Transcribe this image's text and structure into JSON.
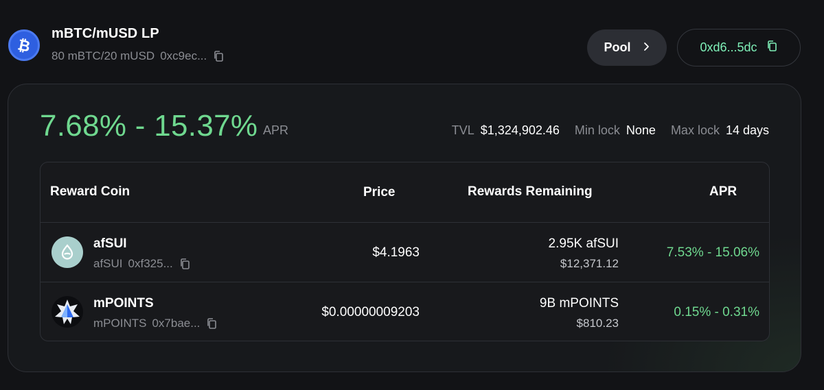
{
  "header": {
    "title": "mBTC/mUSD LP",
    "composition": "80 mBTC/20 mUSD",
    "address": "0xc9ec...",
    "logo_icon": "bitcoin-icon",
    "pool_button_label": "Pool",
    "wallet_label": "0xd6...5dc"
  },
  "summary": {
    "apr_range": "7.68% - 15.37%",
    "apr_label": "APR",
    "tvl_label": "TVL",
    "tvl_value": "$1,324,902.46",
    "min_lock_label": "Min lock",
    "min_lock_value": "None",
    "max_lock_label": "Max lock",
    "max_lock_value": "14 days"
  },
  "table": {
    "columns": [
      "Reward Coin",
      "Price",
      "Rewards Remaining",
      "APR"
    ],
    "rows": [
      {
        "icon": "afsui-drop-icon",
        "name": "afSUI",
        "symbol": "afSUI",
        "address": "0xf325...",
        "price": "$4.1963",
        "remaining_amount": "2.95K afSUI",
        "remaining_usd": "$12,371.12",
        "apr": "7.53% - 15.06%"
      },
      {
        "icon": "mpoints-star-icon",
        "name": "mPOINTS",
        "symbol": "mPOINTS",
        "address": "0x7bae...",
        "price": "$0.00000009203",
        "remaining_amount": "9B mPOINTS",
        "remaining_usd": "$810.23",
        "apr": "0.15% - 0.31%"
      }
    ]
  },
  "colors": {
    "background": "#121316",
    "accent_green": "#6fd88f",
    "wallet_text": "#7ff0b8",
    "muted_text": "#8b8d93",
    "btc_blue": "#2e5fe0"
  }
}
